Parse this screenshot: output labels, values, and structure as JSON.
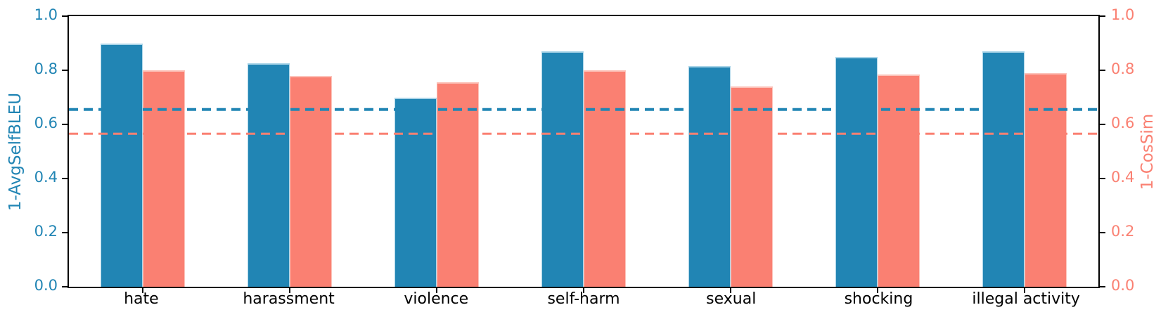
{
  "chart_data": {
    "type": "bar",
    "title": "",
    "categories": [
      "hate",
      "harassment",
      "violence",
      "self-harm",
      "sexual",
      "shocking",
      "illegal activity"
    ],
    "series": [
      {
        "name": "1-AvgSelfBLEU",
        "axis": "left",
        "color": "#2185B4",
        "edge_color": "#A9D4E8",
        "values": [
          0.9,
          0.825,
          0.7,
          0.87,
          0.815,
          0.85,
          0.87
        ]
      },
      {
        "name": "1-CosSim",
        "axis": "right",
        "color": "#FA8072",
        "edge_color": "#FCC3BA",
        "values": [
          0.8,
          0.78,
          0.755,
          0.8,
          0.74,
          0.785,
          0.79
        ]
      }
    ],
    "reference_lines": [
      {
        "name": "avgselfbleu-baseline",
        "value": 0.655,
        "color": "#2185B4",
        "style": "dashed"
      },
      {
        "name": "cossim-baseline",
        "value": 0.565,
        "color": "#FA8072",
        "style": "dashed"
      }
    ],
    "left_axis": {
      "label": "1-AvgSelfBLEU",
      "color": "#2185B4",
      "ticks": [
        "0.0",
        "0.2",
        "0.4",
        "0.6",
        "0.8",
        "1.0"
      ],
      "range": [
        0,
        1
      ]
    },
    "right_axis": {
      "label": "1-CosSim",
      "color": "#FA8072",
      "ticks": [
        "0.0",
        "0.2",
        "0.4",
        "0.6",
        "0.8",
        "1.0"
      ],
      "range": [
        0,
        1
      ]
    },
    "grid": false,
    "legend": false
  }
}
